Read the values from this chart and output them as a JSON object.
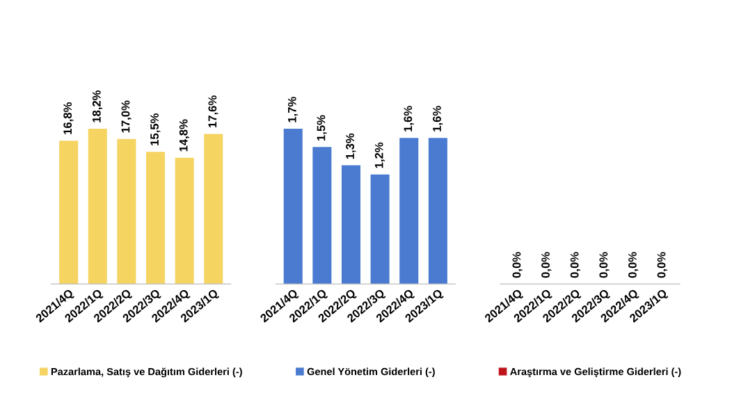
{
  "chart_data": [
    {
      "type": "bar",
      "categories": [
        "2021/4Q",
        "2022/1Q",
        "2022/2Q",
        "2022/3Q",
        "2022/4Q",
        "2023/1Q"
      ],
      "series": [
        {
          "name": "Pazarlama, Satış ve Dağıtım Giderleri (-)",
          "color": "#f5d462",
          "values": [
            16.8,
            18.2,
            17.0,
            15.5,
            14.8,
            17.6
          ],
          "value_labels": [
            "16,8%",
            "18,2%",
            "17,0%",
            "15,5%",
            "14,8%",
            "17,6%"
          ]
        }
      ],
      "legend": "bottom"
    },
    {
      "type": "bar",
      "categories": [
        "2021/4Q",
        "2022/1Q",
        "2022/2Q",
        "2022/3Q",
        "2022/4Q",
        "2023/1Q"
      ],
      "series": [
        {
          "name": "Genel Yönetim Giderleri (-)",
          "color": "#4a7bd0",
          "values": [
            1.7,
            1.5,
            1.3,
            1.2,
            1.6,
            1.6
          ],
          "value_labels": [
            "1,7%",
            "1,5%",
            "1,3%",
            "1,2%",
            "1,6%",
            "1,6%"
          ]
        }
      ],
      "legend": "bottom"
    },
    {
      "type": "other",
      "categories": [
        "2021/4Q",
        "2022/1Q",
        "2022/2Q",
        "2022/3Q",
        "2022/4Q",
        "2023/1Q"
      ],
      "series": [
        {
          "name": "Araştırma ve Geliştirme Giderleri (-)",
          "color": "#c0141c",
          "values": [
            0.0,
            0.0,
            0.0,
            0.0,
            0.0,
            0.0
          ],
          "value_labels": [
            "0,0%",
            "0,0%",
            "0,0%",
            "0,0%",
            "0,0%",
            "0,0%"
          ]
        }
      ],
      "legend": "bottom"
    }
  ]
}
